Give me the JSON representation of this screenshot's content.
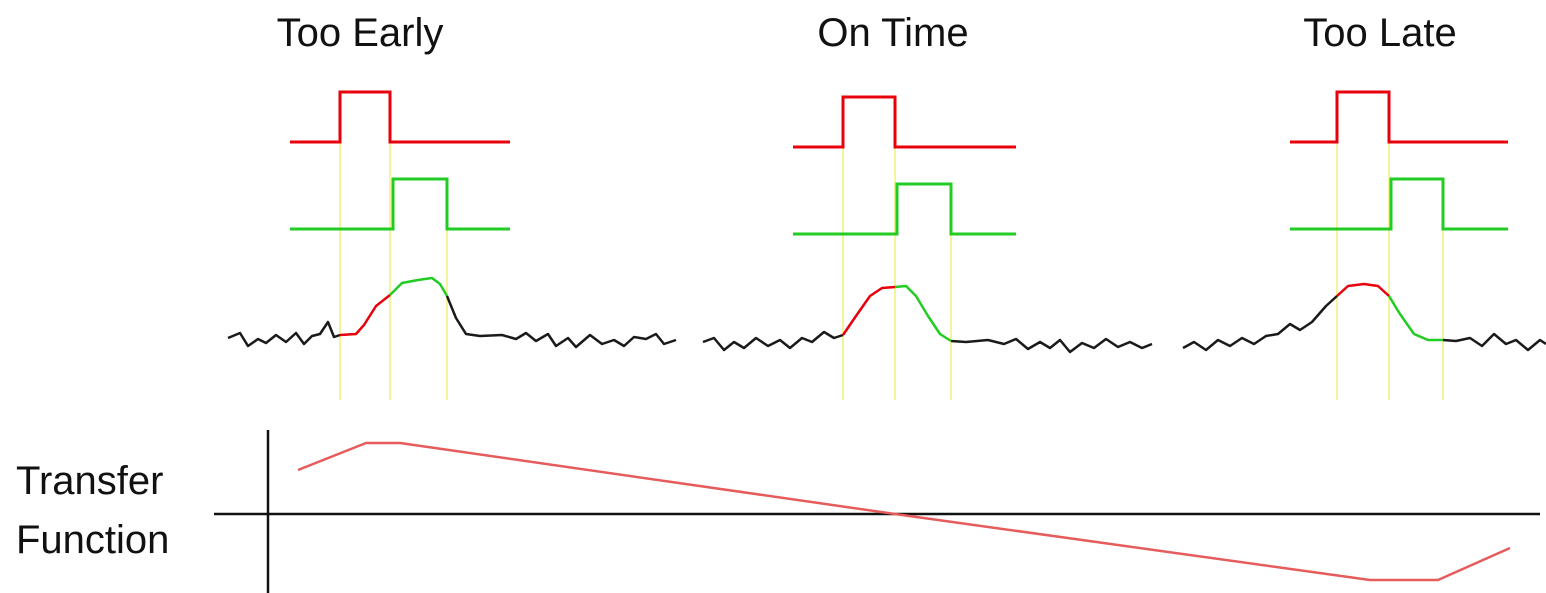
{
  "panels": [
    {
      "title": "Too Early"
    },
    {
      "title": "On Time"
    },
    {
      "title": "Too Late"
    }
  ],
  "transfer_label": [
    "Transfer",
    "Function"
  ],
  "colors": {
    "early_gate": "#e8000b",
    "late_gate": "#22cc22",
    "signal": "#1a1a1a",
    "guide": "#f4f07a",
    "transfer_curve": "#e65b5b",
    "axis": "#111111"
  }
}
